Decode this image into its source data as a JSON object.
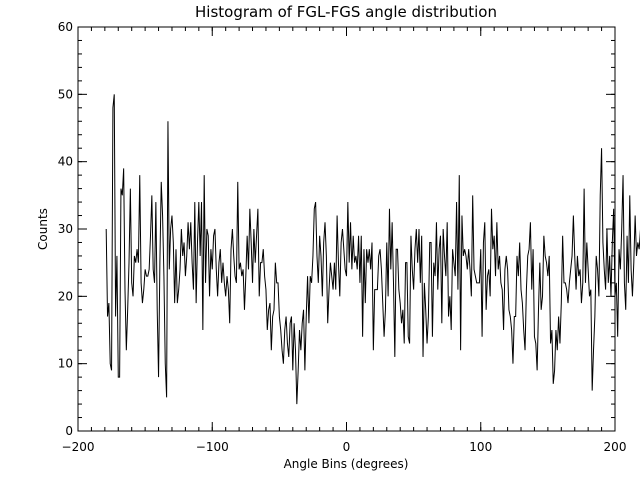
{
  "chart_data": {
    "type": "line",
    "title": "Histogram of FGL-FGS angle distribution",
    "xlabel": "Angle Bins (degrees)",
    "ylabel": "Counts",
    "xlim": [
      -200,
      200
    ],
    "ylim": [
      0,
      60
    ],
    "xticks": [
      -200,
      -100,
      0,
      100,
      200
    ],
    "xtick_labels": [
      "−200",
      "−100",
      "0",
      "100",
      "200"
    ],
    "yticks": [
      0,
      10,
      20,
      30,
      40,
      50,
      60
    ],
    "ytick_labels": [
      "0",
      "10",
      "20",
      "30",
      "40",
      "50",
      "60"
    ],
    "x_minor_step": 10,
    "y_minor_step": 2,
    "grid": false,
    "line_color": "#000000",
    "series": [
      {
        "name": "counts",
        "x_start": -179,
        "x_step": 1,
        "values": [
          30,
          17,
          19,
          10,
          9,
          48,
          50,
          17,
          26,
          8,
          8,
          36,
          35,
          39,
          21,
          12,
          18,
          25,
          36,
          22,
          20,
          26,
          25,
          27,
          25,
          38,
          22,
          19,
          21,
          24,
          23,
          23,
          24,
          29,
          35,
          24,
          22,
          34,
          18,
          8,
          25,
          37,
          32,
          23,
          10,
          5,
          46,
          24,
          30,
          32,
          28,
          19,
          27,
          19,
          21,
          24,
          30,
          26,
          28,
          23,
          26,
          31,
          27,
          31,
          25,
          21,
          34,
          19,
          28,
          34,
          26,
          34,
          15,
          38,
          22,
          30,
          29,
          20,
          27,
          24,
          29,
          30,
          24,
          20,
          25,
          27,
          22,
          25,
          22,
          20,
          23,
          21,
          16,
          27,
          30,
          26,
          23,
          22,
          37,
          24,
          25,
          23,
          24,
          18,
          23,
          29,
          24,
          33,
          28,
          22,
          30,
          25,
          29,
          33,
          20,
          25,
          25,
          27,
          23,
          21,
          15,
          18,
          19,
          12,
          17,
          18,
          25,
          22,
          22,
          17,
          15,
          12,
          10,
          15,
          17,
          13,
          11,
          16,
          17,
          9,
          16,
          12,
          4,
          9,
          15,
          12,
          16,
          18,
          9,
          17,
          23,
          16,
          23,
          22,
          26,
          33,
          34,
          26,
          22,
          29,
          26,
          20,
          28,
          31,
          26,
          16,
          21,
          25,
          23,
          21,
          25,
          21,
          32,
          25,
          20,
          28,
          30,
          27,
          24,
          23,
          34,
          25,
          31,
          24,
          29,
          25,
          26,
          24,
          29,
          22,
          29,
          14,
          27,
          19,
          27,
          25,
          27,
          24,
          28,
          12,
          21,
          21,
          21,
          26,
          27,
          24,
          19,
          14,
          18,
          28,
          20,
          33,
          24,
          31,
          22,
          11,
          27,
          27,
          21,
          19,
          16,
          18,
          13,
          25,
          25,
          14,
          13,
          29,
          24,
          21,
          27,
          30,
          25,
          30,
          22,
          29,
          11,
          22,
          18,
          13,
          17,
          28,
          28,
          14,
          25,
          23,
          31,
          21,
          27,
          29,
          16,
          30,
          26,
          23,
          31,
          17,
          20,
          15,
          27,
          25,
          23,
          34,
          21,
          38,
          12,
          32,
          26,
          27,
          26,
          24,
          27,
          24,
          20,
          35,
          24,
          23,
          22,
          22,
          22,
          27,
          14,
          28,
          31,
          18,
          23,
          24,
          20,
          33,
          27,
          29,
          23,
          31,
          24,
          26,
          22,
          21,
          15,
          24,
          26,
          24,
          18,
          17,
          15,
          10,
          17,
          17,
          26,
          23,
          28,
          21,
          19,
          15,
          12,
          21,
          26,
          27,
          31,
          21,
          27,
          14,
          13,
          9,
          18,
          25,
          18,
          20,
          29,
          26,
          25,
          23,
          26,
          13,
          15,
          7,
          9,
          15,
          12,
          17,
          13,
          19,
          29,
          22,
          22,
          21,
          19,
          22,
          24,
          26,
          32,
          26,
          21,
          26,
          23,
          24,
          19,
          22,
          36,
          22,
          28,
          24,
          20,
          21,
          6,
          12,
          17,
          26,
          24,
          20,
          35,
          42,
          28,
          24,
          21,
          30,
          22,
          26,
          20,
          28,
          33,
          20,
          22,
          14,
          27,
          24,
          30,
          38,
          22,
          18,
          29,
          22,
          35,
          24,
          20,
          25,
          32,
          26,
          28,
          27,
          30,
          34,
          11,
          19,
          25,
          22,
          29,
          21,
          28,
          23,
          12,
          16,
          19,
          24,
          22,
          28,
          14,
          12,
          13,
          11,
          13,
          24,
          25,
          30,
          23,
          28,
          27,
          52,
          30,
          30,
          18,
          22,
          14,
          37,
          0,
          18
        ]
      }
    ]
  }
}
